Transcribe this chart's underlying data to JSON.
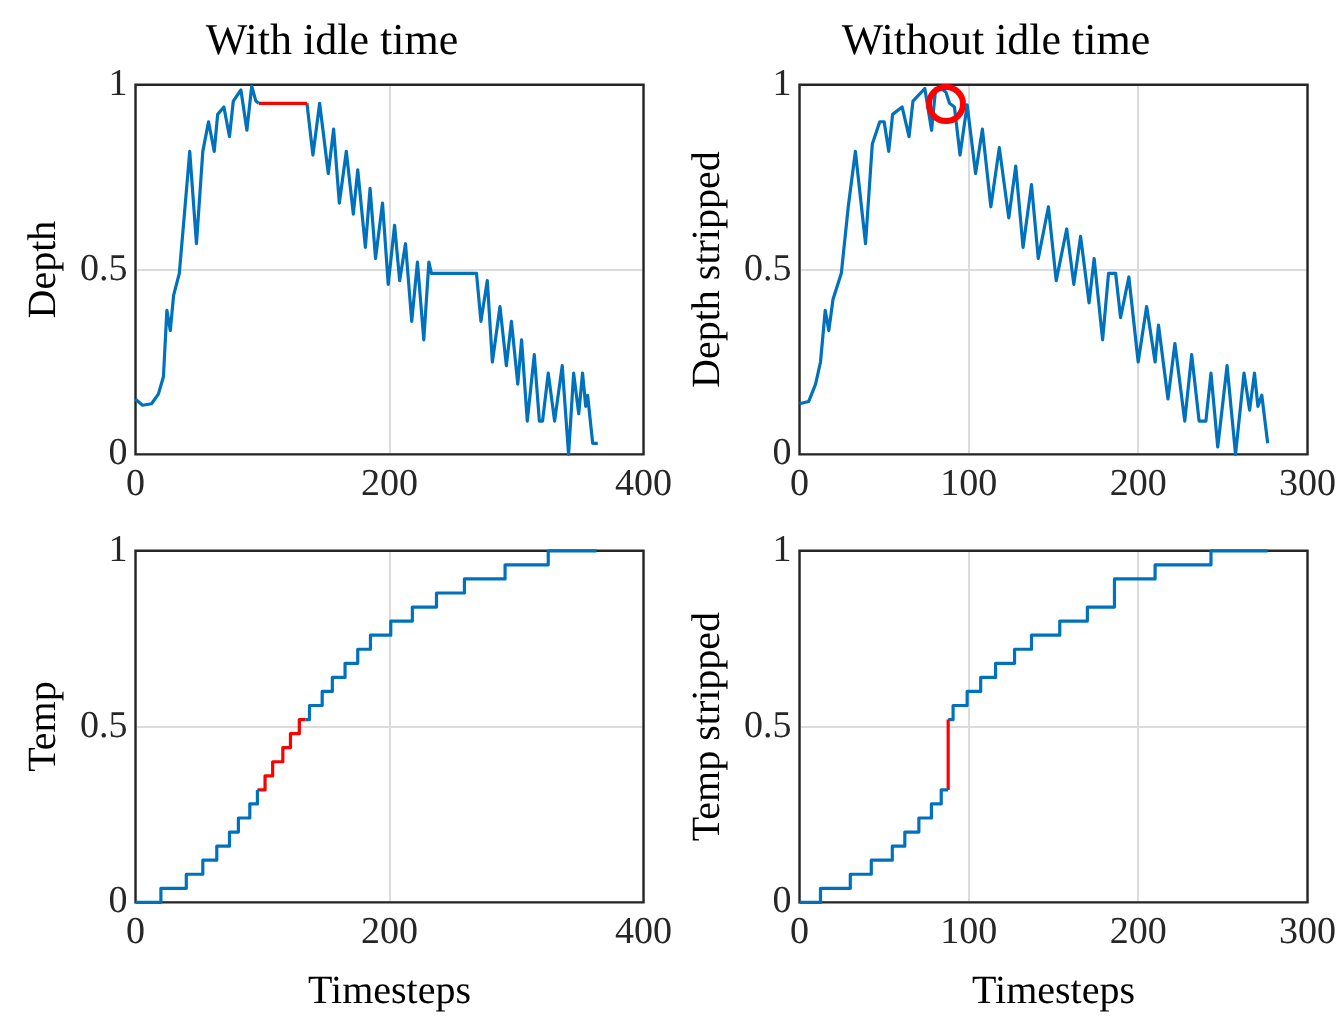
{
  "chart_data": [
    {
      "type": "line",
      "title": "With idle time",
      "ylabel": "Depth",
      "xlim": [
        0,
        400
      ],
      "ylim": [
        0,
        1
      ],
      "xticks": [
        0,
        200,
        400
      ],
      "yticks": [
        0,
        0.5,
        1
      ],
      "grid": true,
      "legend": false,
      "series": [
        {
          "color": "#0072bd",
          "x": [
            0,
            5.5,
            12.6,
            18,
            22,
            24.7,
            27.4,
            30,
            34.5,
            38,
            42.7,
            48,
            53,
            57.5,
            62,
            64.7,
            69.6,
            74,
            77,
            83,
            87.7,
            91.5,
            94.8,
            97
          ],
          "values": [
            0.149,
            0.133,
            0.137,
            0.163,
            0.21,
            0.39,
            0.335,
            0.43,
            0.49,
            0.63,
            0.82,
            0.57,
            0.82,
            0.9,
            0.82,
            0.92,
            0.94,
            0.86,
            0.956,
            0.986,
            0.877,
            0.996,
            0.956,
            0.95
          ]
        },
        {
          "color": "#ff0000",
          "x": [
            97,
            135
          ],
          "values": [
            0.95,
            0.95
          ]
        },
        {
          "color": "#0072bd",
          "x": [
            135,
            139.7,
            145,
            151.8,
            156,
            160.5,
            166,
            171.5,
            175,
            181,
            184.7,
            189,
            194.5,
            199,
            204,
            208,
            212.6,
            217.5,
            222,
            227,
            231,
            233,
            268.5,
            272,
            277,
            281,
            287,
            292,
            296,
            301,
            304,
            308.5,
            314,
            318,
            320.5,
            325,
            330,
            336,
            341,
            345,
            349,
            352,
            354.5,
            356,
            360,
            364
          ],
          "values": [
            0.95,
            0.81,
            0.95,
            0.76,
            0.88,
            0.68,
            0.82,
            0.65,
            0.77,
            0.56,
            0.72,
            0.53,
            0.68,
            0.46,
            0.62,
            0.47,
            0.57,
            0.36,
            0.52,
            0.31,
            0.52,
            0.49,
            0.49,
            0.36,
            0.47,
            0.25,
            0.4,
            0.24,
            0.36,
            0.19,
            0.31,
            0.09,
            0.27,
            0.09,
            0.09,
            0.22,
            0.09,
            0.24,
            0,
            0.22,
            0.11,
            0.22,
            0.13,
            0.16,
            0.03,
            0.03
          ]
        }
      ]
    },
    {
      "type": "line",
      "title": "Without idle time",
      "ylabel": "Depth stripped",
      "xlim": [
        0,
        300
      ],
      "ylim": [
        0,
        1
      ],
      "xticks": [
        0,
        100,
        200,
        300
      ],
      "yticks": [
        0,
        0.5,
        1
      ],
      "grid": true,
      "legend": false,
      "series": [
        {
          "color": "#0072bd",
          "x": [
            0,
            5.4,
            9.5,
            12.4,
            15.2,
            17.3,
            19.8,
            24.7,
            28.8,
            33,
            39,
            43,
            47.4,
            50,
            52.7,
            55,
            60.6,
            64.7,
            67,
            74,
            78,
            80.4,
            83.7,
            86.5,
            88.6,
            91.5,
            94.8,
            99,
            104,
            108,
            113,
            118,
            123.6,
            127.7,
            132,
            137,
            141,
            147,
            151.6,
            157.8,
            162,
            166,
            171,
            174,
            179,
            182.5,
            186.7,
            189.6,
            194.5,
            200,
            205,
            210,
            212,
            217.6,
            221.7,
            227.5,
            231.6,
            236,
            240,
            243,
            247,
            252.5,
            257.5,
            262.5,
            265.8,
            268.7,
            270.7,
            273,
            276.5
          ],
          "values": [
            0.137,
            0.143,
            0.19,
            0.25,
            0.39,
            0.335,
            0.42,
            0.49,
            0.67,
            0.82,
            0.57,
            0.84,
            0.9,
            0.9,
            0.82,
            0.92,
            0.94,
            0.86,
            0.956,
            0.99,
            0.877,
            0.99,
            0.99,
            0.98,
            0.95,
            0.94,
            0.81,
            0.946,
            0.76,
            0.88,
            0.67,
            0.83,
            0.64,
            0.78,
            0.56,
            0.73,
            0.53,
            0.67,
            0.47,
            0.61,
            0.46,
            0.59,
            0.41,
            0.53,
            0.31,
            0.49,
            0.49,
            0.37,
            0.48,
            0.25,
            0.4,
            0.25,
            0.35,
            0.15,
            0.3,
            0.09,
            0.27,
            0.09,
            0.09,
            0.22,
            0.02,
            0.24,
            0,
            0.22,
            0.12,
            0.22,
            0.13,
            0.16,
            0.03
          ]
        }
      ]
    },
    {
      "type": "step",
      "xlabel": "Timesteps",
      "ylabel": "Temp",
      "xlim": [
        0,
        400
      ],
      "ylim": [
        0,
        1
      ],
      "xticks": [
        0,
        200,
        400
      ],
      "yticks": [
        0,
        0.5,
        1
      ],
      "grid": true,
      "legend": false,
      "series": [
        {
          "color": "#0072bd",
          "x": [
            0,
            20,
            40,
            53,
            64,
            74,
            81,
            90,
            96
          ],
          "values": [
            0,
            0.04,
            0.08,
            0.12,
            0.16,
            0.2,
            0.24,
            0.28,
            0.32
          ]
        },
        {
          "color": "#ff0000",
          "x": [
            96,
            102,
            108,
            116,
            122,
            129,
            134
          ],
          "values": [
            0.32,
            0.36,
            0.4,
            0.44,
            0.48,
            0.52,
            0.52
          ]
        },
        {
          "color": "#0072bd",
          "x": [
            134,
            137,
            147,
            155,
            165,
            175,
            185,
            201,
            218,
            237,
            259,
            291,
            325,
            363
          ],
          "values": [
            0.52,
            0.56,
            0.6,
            0.64,
            0.68,
            0.72,
            0.76,
            0.8,
            0.84,
            0.88,
            0.92,
            0.96,
            1,
            1
          ]
        }
      ]
    },
    {
      "type": "step",
      "xlabel": "Timesteps",
      "ylabel": "Temp stripped",
      "xlim": [
        0,
        300
      ],
      "ylim": [
        0,
        1
      ],
      "xticks": [
        0,
        100,
        200,
        300
      ],
      "yticks": [
        0,
        0.5,
        1
      ],
      "grid": true,
      "legend": false,
      "series": [
        {
          "color": "#0072bd",
          "x": [
            0,
            12.4,
            30,
            42.4,
            54.8,
            62.2,
            70.5,
            77.9,
            83.7,
            87.8
          ],
          "values": [
            0,
            0.04,
            0.08,
            0.12,
            0.16,
            0.2,
            0.24,
            0.28,
            0.32,
            0.32
          ]
        },
        {
          "color": "#ff0000",
          "type": "line",
          "x": [
            87.8,
            87.8
          ],
          "values": [
            0.32,
            0.52
          ]
        },
        {
          "color": "#0072bd",
          "x": [
            87.8,
            90.7,
            99,
            107,
            115.8,
            127,
            137,
            153.7,
            170,
            186,
            210,
            243,
            276.5
          ],
          "values": [
            0.52,
            0.56,
            0.6,
            0.64,
            0.68,
            0.72,
            0.76,
            0.8,
            0.84,
            0.92,
            0.96,
            1,
            1
          ]
        }
      ]
    }
  ]
}
